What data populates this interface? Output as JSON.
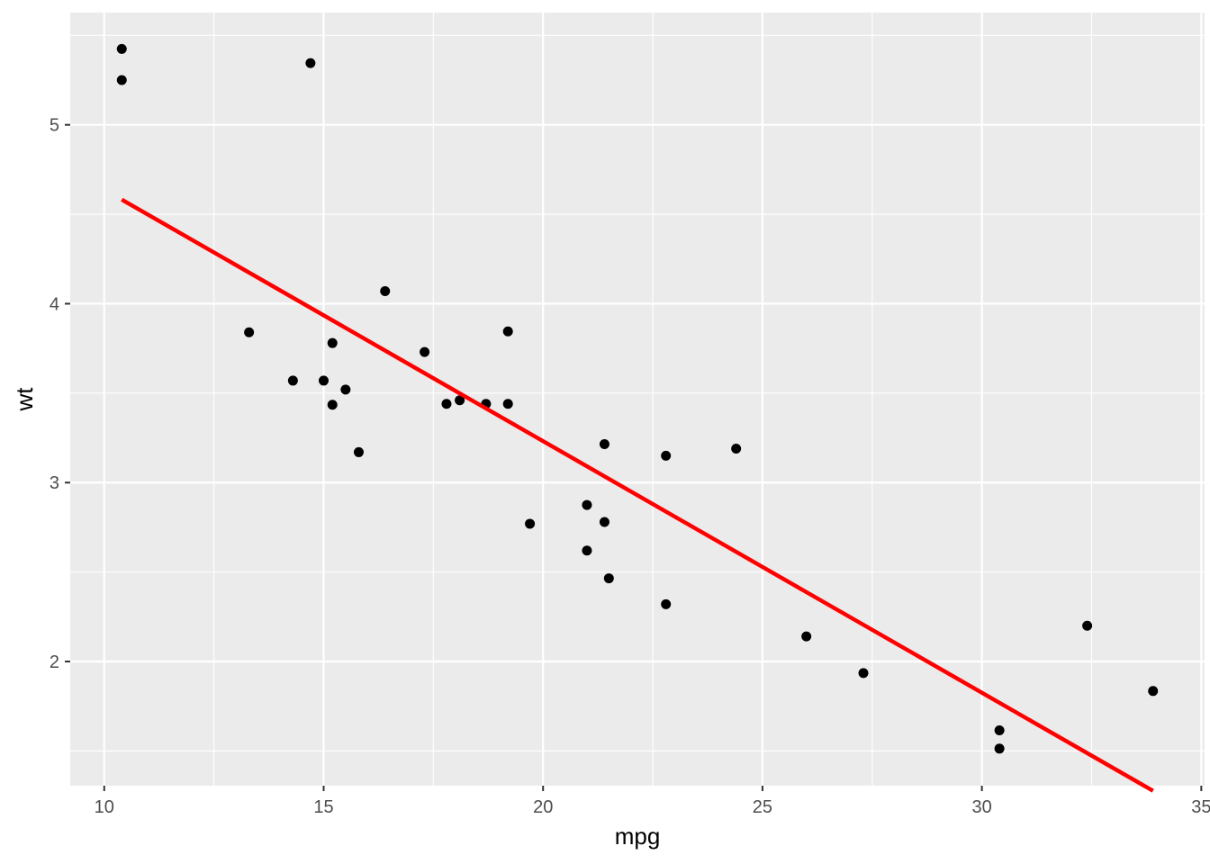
{
  "chart_data": {
    "type": "scatter",
    "title": "",
    "xlabel": "mpg",
    "ylabel": "wt",
    "xlim": [
      9.225,
      35.075
    ],
    "ylim": [
      1.30575,
      5.62725
    ],
    "x_ticks": [
      {
        "value": 10,
        "label": "10"
      },
      {
        "value": 15,
        "label": "15"
      },
      {
        "value": 20,
        "label": "20"
      },
      {
        "value": 25,
        "label": "25"
      },
      {
        "value": 30,
        "label": "30"
      },
      {
        "value": 35,
        "label": "35"
      }
    ],
    "y_ticks": [
      {
        "value": 2,
        "label": "2"
      },
      {
        "value": 3,
        "label": "3"
      },
      {
        "value": 4,
        "label": "4"
      },
      {
        "value": 5,
        "label": "5"
      }
    ],
    "x_minor": [
      12.5,
      17.5,
      22.5,
      27.5,
      32.5
    ],
    "y_minor": [
      1.5,
      2.5,
      3.5,
      4.5,
      5.5
    ],
    "grid": true,
    "legend": "none",
    "colors": {
      "panel_background": "#EBEBEB",
      "grid_line": "#FFFFFF",
      "point": "#000000",
      "fit_line": "#FF0000"
    },
    "series": [
      {
        "points": [
          {
            "x": 21.0,
            "y": 2.62
          },
          {
            "x": 21.0,
            "y": 2.875
          },
          {
            "x": 22.8,
            "y": 2.32
          },
          {
            "x": 21.4,
            "y": 3.215
          },
          {
            "x": 18.7,
            "y": 3.44
          },
          {
            "x": 18.1,
            "y": 3.46
          },
          {
            "x": 14.3,
            "y": 3.57
          },
          {
            "x": 24.4,
            "y": 3.19
          },
          {
            "x": 22.8,
            "y": 3.15
          },
          {
            "x": 19.2,
            "y": 3.44
          },
          {
            "x": 17.8,
            "y": 3.44
          },
          {
            "x": 16.4,
            "y": 4.07
          },
          {
            "x": 17.3,
            "y": 3.73
          },
          {
            "x": 15.2,
            "y": 3.78
          },
          {
            "x": 10.4,
            "y": 5.25
          },
          {
            "x": 10.4,
            "y": 5.424
          },
          {
            "x": 14.7,
            "y": 5.345
          },
          {
            "x": 32.4,
            "y": 2.2
          },
          {
            "x": 30.4,
            "y": 1.615
          },
          {
            "x": 33.9,
            "y": 1.835
          },
          {
            "x": 21.5,
            "y": 2.465
          },
          {
            "x": 15.5,
            "y": 3.52
          },
          {
            "x": 15.2,
            "y": 3.435
          },
          {
            "x": 13.3,
            "y": 3.84
          },
          {
            "x": 19.2,
            "y": 3.845
          },
          {
            "x": 27.3,
            "y": 1.935
          },
          {
            "x": 26.0,
            "y": 2.14
          },
          {
            "x": 30.4,
            "y": 1.513
          },
          {
            "x": 15.8,
            "y": 3.17
          },
          {
            "x": 19.7,
            "y": 2.77
          },
          {
            "x": 15.0,
            "y": 3.57
          },
          {
            "x": 21.4,
            "y": 2.78
          }
        ]
      }
    ],
    "fit_line": {
      "type": "linear",
      "points": [
        {
          "x": 10.4,
          "y": 4.582
        },
        {
          "x": 33.9,
          "y": 1.277
        }
      ]
    }
  }
}
